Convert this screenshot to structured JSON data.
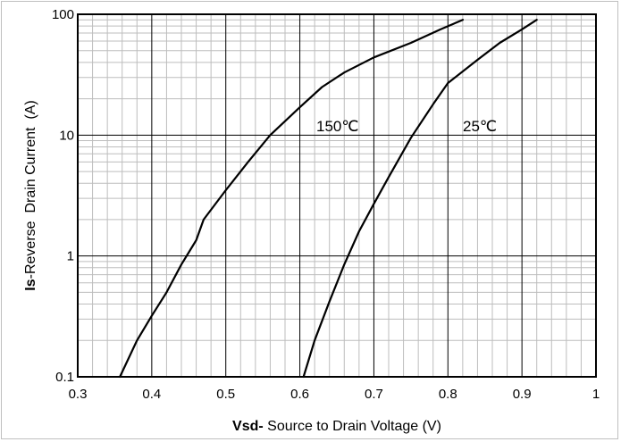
{
  "chart_data": {
    "type": "line",
    "xlabel_bold": "Vsd-",
    "xlabel_rest": " Source to Drain Voltage (V)",
    "ylabel_bold": "Is",
    "ylabel_rest": "-Reverse  Drain Current  (A)",
    "xlim": [
      0.3,
      1.0
    ],
    "ylim": [
      0.1,
      100
    ],
    "yscale": "log",
    "x_tick_labels": [
      "0.3",
      "0.4",
      "0.5",
      "0.6",
      "0.7",
      "0.8",
      "0.9",
      "1"
    ],
    "y_tick_labels": [
      "0.1",
      "1",
      "10",
      "100"
    ],
    "grid": true,
    "series": [
      {
        "name": "150℃",
        "x": [
          0.357,
          0.38,
          0.4,
          0.42,
          0.44,
          0.46,
          0.47,
          0.5,
          0.53,
          0.56,
          0.6,
          0.63,
          0.66,
          0.7,
          0.75,
          0.79,
          0.82
        ],
        "y": [
          0.1,
          0.2,
          0.32,
          0.5,
          0.85,
          1.35,
          2.0,
          3.5,
          6.0,
          10,
          17,
          25,
          33,
          44,
          58,
          75,
          90
        ]
      },
      {
        "name": "25℃",
        "x": [
          0.605,
          0.62,
          0.64,
          0.66,
          0.68,
          0.7,
          0.72,
          0.75,
          0.78,
          0.8,
          0.84,
          0.87,
          0.9,
          0.92
        ],
        "y": [
          0.1,
          0.2,
          0.42,
          0.85,
          1.6,
          2.7,
          4.5,
          9.5,
          18,
          27,
          42,
          58,
          75,
          90
        ]
      }
    ]
  }
}
